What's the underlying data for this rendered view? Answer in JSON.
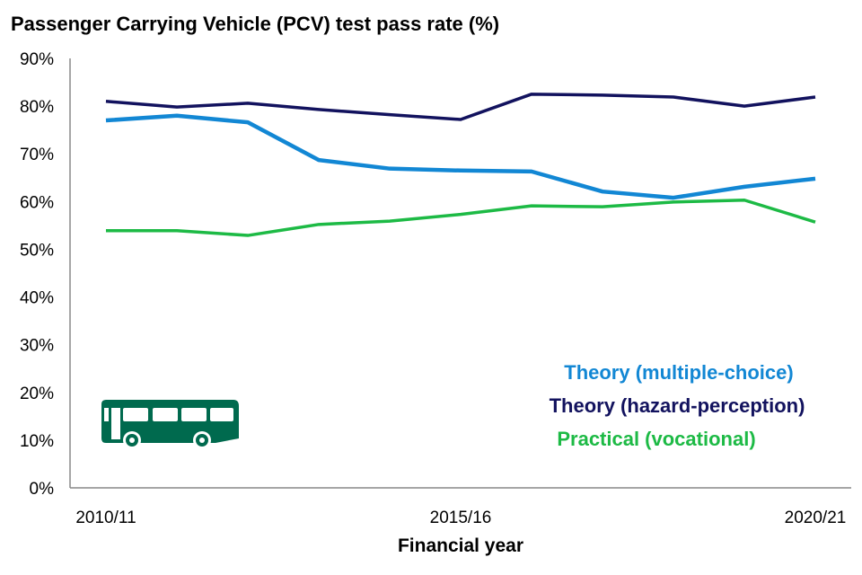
{
  "chart_data": {
    "type": "line",
    "title": "Passenger Carrying Vehicle (PCV) test pass rate (%)",
    "xlabel": "Financial year",
    "ylabel": "",
    "x": [
      "2010/11",
      "2011/12",
      "2012/13",
      "2013/14",
      "2014/15",
      "2015/16",
      "2016/17",
      "2017/18",
      "2018/19",
      "2019/20",
      "2020/21"
    ],
    "x_tick_labels": [
      "2010/11",
      "2015/16",
      "2020/21"
    ],
    "ylim": [
      0,
      90
    ],
    "y_ticks": [
      "0%",
      "10%",
      "20%",
      "30%",
      "40%",
      "50%",
      "60%",
      "70%",
      "80%",
      "90%"
    ],
    "grid": false,
    "legend_position": "bottom-right",
    "series": [
      {
        "name": "Theory (multiple-choice)",
        "color": "#1287d4",
        "values": [
          77.0,
          78.0,
          76.6,
          68.7,
          66.9,
          66.5,
          66.3,
          62.1,
          60.8,
          63.1,
          64.8
        ]
      },
      {
        "name": "Theory (hazard-perception)",
        "color": "#12125e",
        "values": [
          81.0,
          79.8,
          80.6,
          79.3,
          78.2,
          77.2,
          82.5,
          82.3,
          81.9,
          80.0,
          81.9
        ]
      },
      {
        "name": "Practical (vocational)",
        "color": "#1dba45",
        "values": [
          53.9,
          53.9,
          52.9,
          55.2,
          55.9,
          57.3,
          59.1,
          58.9,
          59.9,
          60.3,
          55.7
        ]
      }
    ],
    "icon": "bus-icon",
    "icon_color": "#006a4e"
  }
}
